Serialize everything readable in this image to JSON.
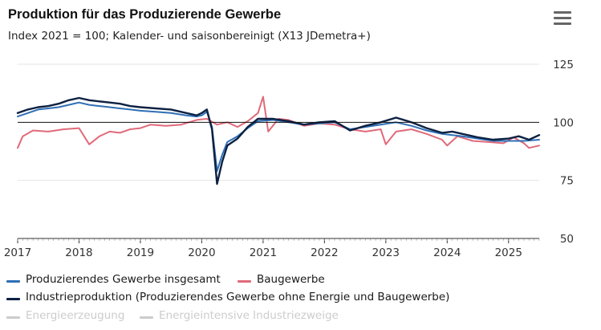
{
  "header": {
    "title": "Produktion für das Produzierende Gewerbe",
    "subtitle": "Index 2021 = 100; Kalender- und saisonbereinigt (X13 JDemetra+)"
  },
  "menu": {
    "icon": "hamburger-menu-icon"
  },
  "colors": {
    "gesamt": "#2f6fb5",
    "bau": "#e06a7a",
    "industrie": "#0d2142",
    "hidden": "#cccccc",
    "reference": "#111111",
    "grid": "#e6e6e6"
  },
  "legend": {
    "items": [
      {
        "label": "Produzierendes Gewerbe insgesamt",
        "color": "#2f6fb5",
        "visible": true
      },
      {
        "label": "Baugewerbe",
        "color": "#e06a7a",
        "visible": true
      },
      {
        "label": "Industrieproduktion (Produzierendes Gewerbe ohne Energie und Baugewerbe)",
        "color": "#0d2142",
        "visible": true
      },
      {
        "label": "Energieerzeugung",
        "color": "#cccccc",
        "visible": false
      },
      {
        "label": "Energieintensive Industriezweige",
        "color": "#cccccc",
        "visible": false
      }
    ]
  },
  "chart_data": {
    "type": "line",
    "title": "Produktion für das Produzierende Gewerbe",
    "subtitle": "Index 2021 = 100; Kalender- und saisonbereinigt (X13 JDemetra+)",
    "x_range": [
      "2017-01",
      "2025-07"
    ],
    "x_ticks": [
      "2017",
      "2018",
      "2019",
      "2020",
      "2021",
      "2022",
      "2023",
      "2024",
      "2025"
    ],
    "ylim": [
      50,
      125
    ],
    "y_ticks": [
      50,
      75,
      100,
      125
    ],
    "reference_line": 100,
    "grid": true,
    "legend_position": "bottom",
    "series": [
      {
        "name": "Produzierendes Gewerbe insgesamt",
        "key": "gesamt",
        "points": [
          [
            "2017-01",
            102.5
          ],
          [
            "2017-03",
            104
          ],
          [
            "2017-05",
            105.5
          ],
          [
            "2017-07",
            106
          ],
          [
            "2017-09",
            106.5
          ],
          [
            "2017-11",
            107.5
          ],
          [
            "2018-01",
            108.5
          ],
          [
            "2018-03",
            107.5
          ],
          [
            "2018-05",
            107
          ],
          [
            "2018-07",
            106.5
          ],
          [
            "2018-09",
            106
          ],
          [
            "2018-11",
            105.5
          ],
          [
            "2019-01",
            105
          ],
          [
            "2019-04",
            104.5
          ],
          [
            "2019-07",
            104
          ],
          [
            "2019-10",
            103
          ],
          [
            "2019-12",
            102.5
          ],
          [
            "2020-01",
            103
          ],
          [
            "2020-02",
            104.5
          ],
          [
            "2020-03",
            98
          ],
          [
            "2020-04",
            79
          ],
          [
            "2020-05",
            86
          ],
          [
            "2020-06",
            91.5
          ],
          [
            "2020-08",
            94
          ],
          [
            "2020-10",
            97.5
          ],
          [
            "2020-12",
            100.5
          ],
          [
            "2021-03",
            101
          ],
          [
            "2021-06",
            100
          ],
          [
            "2021-09",
            99
          ],
          [
            "2021-12",
            99.5
          ],
          [
            "2022-03",
            100
          ],
          [
            "2022-06",
            97
          ],
          [
            "2022-09",
            98
          ],
          [
            "2022-12",
            99
          ],
          [
            "2023-03",
            100
          ],
          [
            "2023-06",
            98.5
          ],
          [
            "2023-09",
            96.5
          ],
          [
            "2023-12",
            95
          ],
          [
            "2024-02",
            94.5
          ],
          [
            "2024-04",
            94
          ],
          [
            "2024-07",
            93
          ],
          [
            "2024-10",
            92
          ],
          [
            "2025-01",
            92
          ],
          [
            "2025-04",
            92
          ],
          [
            "2025-07",
            92.5
          ]
        ]
      },
      {
        "name": "Baugewerbe",
        "key": "bau",
        "points": [
          [
            "2017-01",
            89
          ],
          [
            "2017-02",
            94
          ],
          [
            "2017-04",
            96.5
          ],
          [
            "2017-07",
            96
          ],
          [
            "2017-10",
            97
          ],
          [
            "2018-01",
            97.5
          ],
          [
            "2018-03",
            90.5
          ],
          [
            "2018-05",
            94
          ],
          [
            "2018-07",
            96
          ],
          [
            "2018-09",
            95.5
          ],
          [
            "2018-11",
            97
          ],
          [
            "2019-01",
            97.5
          ],
          [
            "2019-03",
            99
          ],
          [
            "2019-06",
            98.5
          ],
          [
            "2019-09",
            99
          ],
          [
            "2019-12",
            101
          ],
          [
            "2020-02",
            101.5
          ],
          [
            "2020-04",
            99
          ],
          [
            "2020-06",
            100
          ],
          [
            "2020-08",
            98
          ],
          [
            "2020-10",
            100.5
          ],
          [
            "2020-12",
            104
          ],
          [
            "2021-01",
            111
          ],
          [
            "2021-02",
            96
          ],
          [
            "2021-04",
            101.5
          ],
          [
            "2021-06",
            101
          ],
          [
            "2021-09",
            98.5
          ],
          [
            "2021-12",
            99.5
          ],
          [
            "2022-03",
            99
          ],
          [
            "2022-06",
            97
          ],
          [
            "2022-09",
            96
          ],
          [
            "2022-12",
            97
          ],
          [
            "2023-01",
            90.5
          ],
          [
            "2023-03",
            96
          ],
          [
            "2023-06",
            97
          ],
          [
            "2023-09",
            95
          ],
          [
            "2023-12",
            92.5
          ],
          [
            "2024-01",
            90
          ],
          [
            "2024-03",
            94
          ],
          [
            "2024-06",
            92
          ],
          [
            "2024-09",
            91.5
          ],
          [
            "2024-12",
            91
          ],
          [
            "2025-02",
            93.5
          ],
          [
            "2025-04",
            91
          ],
          [
            "2025-05",
            89
          ],
          [
            "2025-07",
            90
          ]
        ]
      },
      {
        "name": "Industrieproduktion (Produzierendes Gewerbe ohne Energie und Baugewerbe)",
        "key": "industrie",
        "points": [
          [
            "2017-01",
            104
          ],
          [
            "2017-03",
            105.5
          ],
          [
            "2017-05",
            106.5
          ],
          [
            "2017-07",
            107
          ],
          [
            "2017-09",
            108
          ],
          [
            "2017-11",
            109.5
          ],
          [
            "2018-01",
            110.5
          ],
          [
            "2018-03",
            109.5
          ],
          [
            "2018-05",
            109
          ],
          [
            "2018-07",
            108.5
          ],
          [
            "2018-09",
            108
          ],
          [
            "2018-11",
            107
          ],
          [
            "2019-01",
            106.5
          ],
          [
            "2019-04",
            106
          ],
          [
            "2019-07",
            105.5
          ],
          [
            "2019-10",
            104
          ],
          [
            "2019-12",
            103
          ],
          [
            "2020-01",
            104
          ],
          [
            "2020-02",
            105.5
          ],
          [
            "2020-03",
            97
          ],
          [
            "2020-04",
            73.5
          ],
          [
            "2020-05",
            83
          ],
          [
            "2020-06",
            90
          ],
          [
            "2020-08",
            93
          ],
          [
            "2020-10",
            98
          ],
          [
            "2020-12",
            101.5
          ],
          [
            "2021-03",
            101.5
          ],
          [
            "2021-06",
            100.5
          ],
          [
            "2021-09",
            99
          ],
          [
            "2021-12",
            100
          ],
          [
            "2022-03",
            100.5
          ],
          [
            "2022-06",
            96.5
          ],
          [
            "2022-09",
            98.5
          ],
          [
            "2022-12",
            100
          ],
          [
            "2023-03",
            102
          ],
          [
            "2023-06",
            100
          ],
          [
            "2023-09",
            97.5
          ],
          [
            "2023-12",
            95.5
          ],
          [
            "2024-02",
            96
          ],
          [
            "2024-04",
            95
          ],
          [
            "2024-07",
            93.5
          ],
          [
            "2024-10",
            92.5
          ],
          [
            "2025-01",
            93
          ],
          [
            "2025-03",
            94
          ],
          [
            "2025-05",
            92.5
          ],
          [
            "2025-07",
            94.5
          ]
        ]
      }
    ]
  }
}
